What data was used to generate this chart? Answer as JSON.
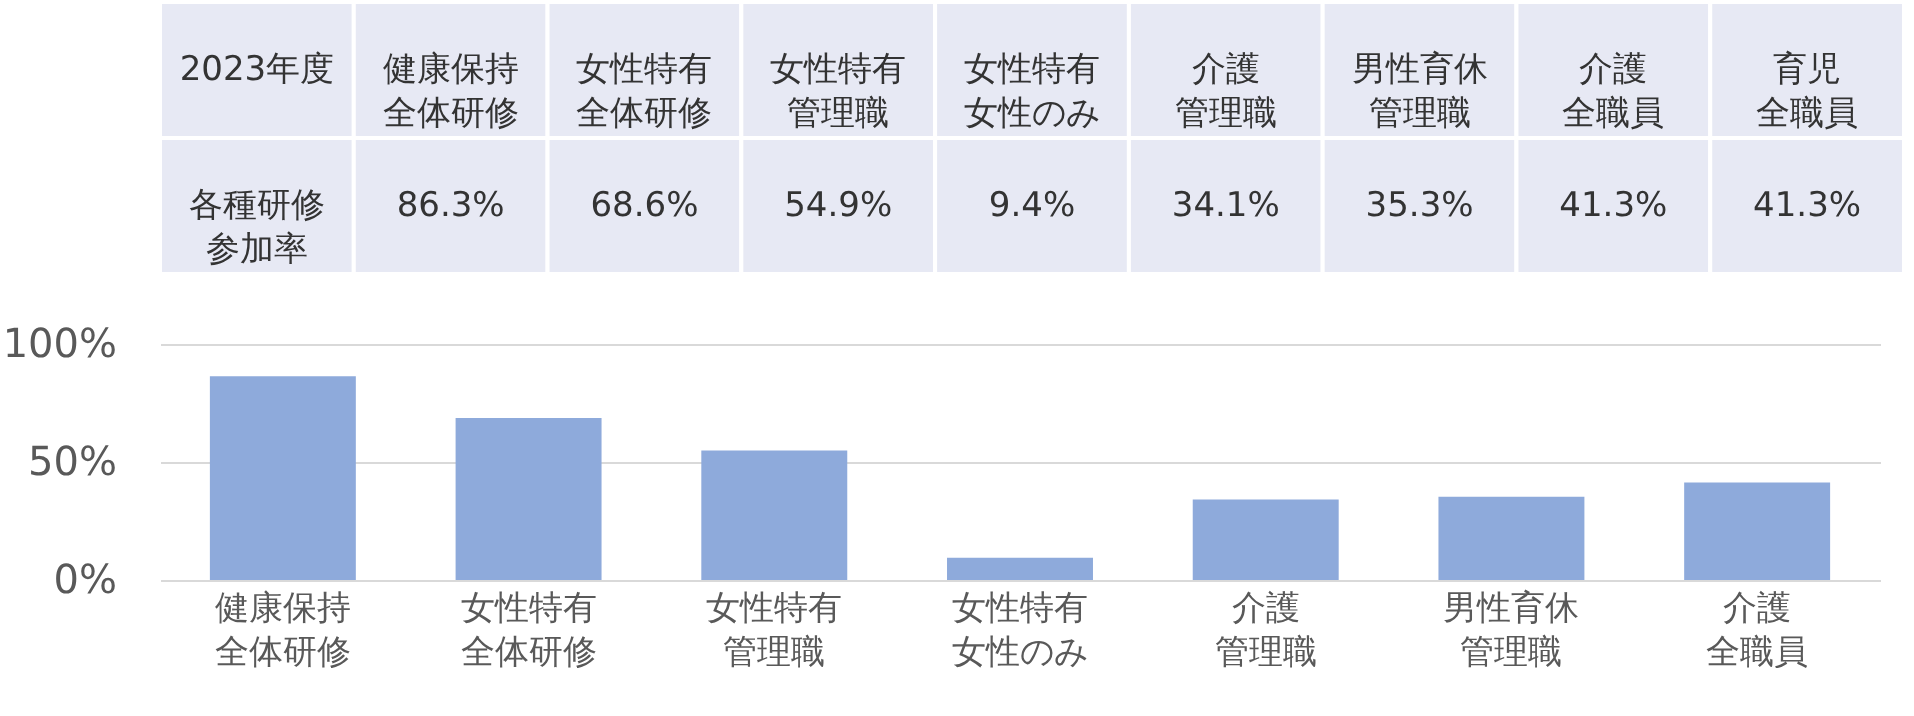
{
  "chart_data": [
    {
      "type": "other",
      "title": "2023年度",
      "ylabel": "各種研修参加率",
      "categories": [
        "健康保持全体研修",
        "女性特有全体研修",
        "女性特有管理職",
        "女性特有女性のみ",
        "介護管理職",
        "男性育休管理職",
        "介護全職員",
        "育児全職員"
      ],
      "values": [
        86.3,
        68.6,
        54.9,
        9.4,
        34.1,
        35.3,
        41.3,
        41.3
      ],
      "value_labels": [
        "86.3%",
        "68.6%",
        "54.9%",
        "9.4%",
        "34.1%",
        "35.3%",
        "41.3%",
        "41.3%"
      ]
    },
    {
      "type": "bar",
      "categories": [
        "健康保持全体研修",
        "女性特有全体研修",
        "女性特有管理職",
        "女性特有女性のみ",
        "介護管理職",
        "男性育休管理職",
        "介護全職員"
      ],
      "values": [
        86.3,
        68.6,
        54.9,
        9.4,
        34.1,
        35.3,
        41.3
      ],
      "color": "#8eaadb",
      "ylim": [
        0,
        100
      ],
      "yticks": [
        {
          "value": 0,
          "label": "0%"
        },
        {
          "value": 50,
          "label": "50%"
        },
        {
          "value": 100,
          "label": "100%"
        }
      ],
      "grid": "y"
    }
  ]
}
